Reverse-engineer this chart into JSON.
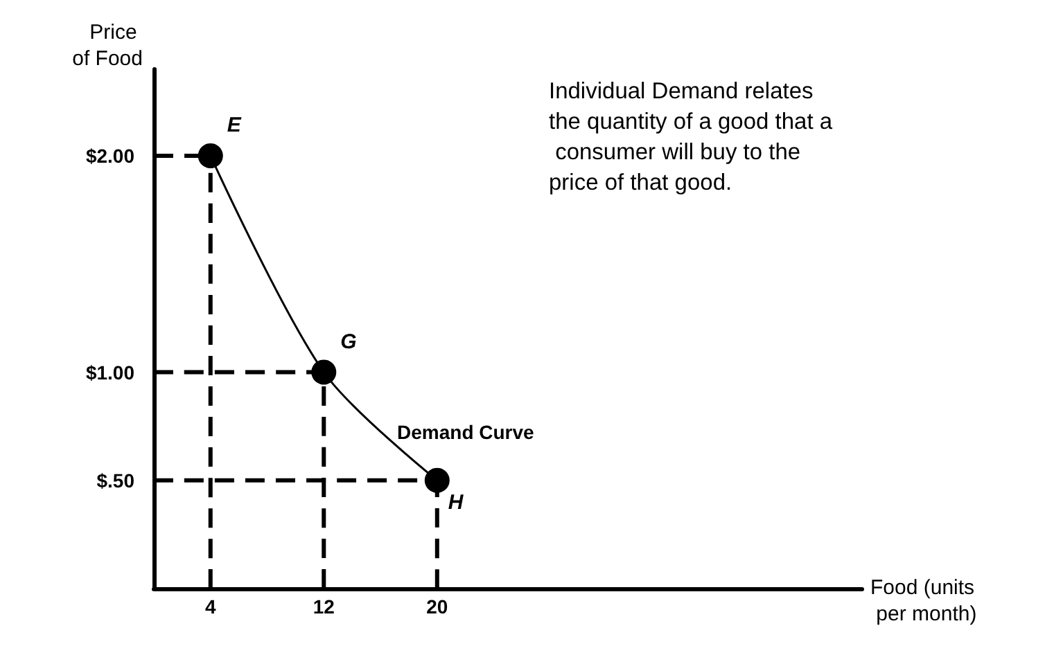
{
  "chart_data": {
    "type": "line",
    "xlabel": "Food (units per month)",
    "ylabel": "Price of Food",
    "xlim": [
      0,
      50
    ],
    "ylim": [
      0,
      2.4
    ],
    "xticks": [
      4,
      12,
      20
    ],
    "yticks": [
      {
        "value": 0.5,
        "label": "$.50"
      },
      {
        "value": 1,
        "label": "$1.00"
      },
      {
        "value": 2,
        "label": "$2.00"
      }
    ],
    "series": [
      {
        "name": "Demand Curve",
        "color": "#000000",
        "x": [
          4,
          12,
          20
        ],
        "values": [
          2,
          1,
          0.5
        ],
        "marker": "circle",
        "line_style": "solid"
      },
      {
        "color": "#000000",
        "x": [
          4,
          4
        ],
        "values": [
          0,
          2
        ],
        "marker": "none",
        "line_style": "dashed"
      },
      {
        "color": "#000000",
        "x": [
          12,
          12
        ],
        "values": [
          0,
          1
        ],
        "marker": "none",
        "line_style": "dashed"
      },
      {
        "color": "#000000",
        "x": [
          20,
          20
        ],
        "values": [
          0,
          0.5
        ],
        "marker": "none",
        "line_style": "dashed"
      },
      {
        "color": "#000000",
        "x": [
          0,
          4
        ],
        "values": [
          2,
          2
        ],
        "marker": "none",
        "line_style": "dashed"
      },
      {
        "color": "#000000",
        "x": [
          0,
          12
        ],
        "values": [
          1,
          1
        ],
        "marker": "none",
        "line_style": "dashed"
      },
      {
        "color": "#000000",
        "x": [
          0,
          20
        ],
        "values": [
          0.5,
          0.5
        ],
        "marker": "none",
        "line_style": "dashed"
      }
    ],
    "annotations": [
      {
        "text": "E",
        "x": 4,
        "y": 2
      },
      {
        "text": "G",
        "x": 12,
        "y": 1
      },
      {
        "text": "H",
        "x": 20,
        "y": 0.5
      },
      "Individual Demand relates the quantity of a good that a consumer will buy to the price of that good."
    ],
    "grid": false
  }
}
